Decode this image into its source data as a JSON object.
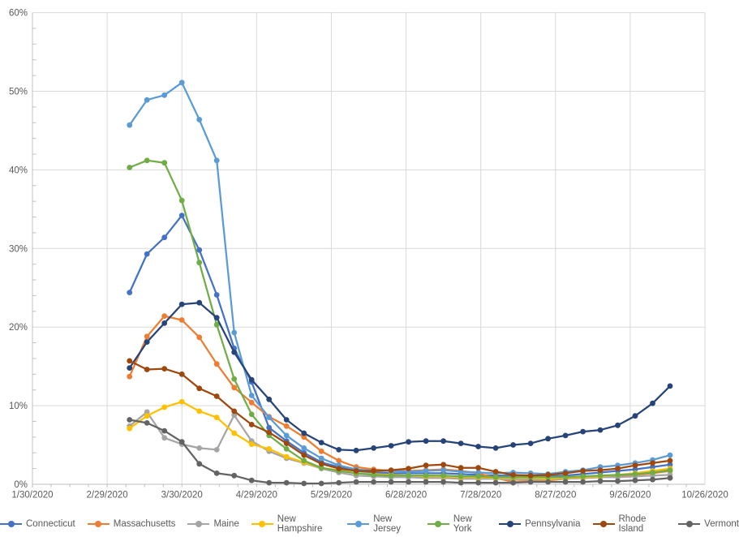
{
  "colors": {
    "background": "#FFFFFF",
    "axis_line": "#BFBFBF",
    "gridline": "#D9D9D9",
    "tick_text": "#595959",
    "legend_text": "#595959"
  },
  "chart_data": {
    "type": "line",
    "title": "",
    "grid": true,
    "legend_position": "bottom",
    "x_axis": {
      "tick_labels": [
        "1/30/2020",
        "2/29/2020",
        "3/30/2020",
        "4/29/2020",
        "5/29/2020",
        "6/28/2020",
        "7/28/2020",
        "8/27/2020",
        "9/26/2020",
        "10/26/2020"
      ],
      "tick_day_offsets": [
        0,
        30,
        60,
        90,
        120,
        150,
        180,
        210,
        240,
        270
      ],
      "range_days": [
        0,
        270
      ]
    },
    "y_axis": {
      "tick_labels": [
        "0%",
        "10%",
        "20%",
        "30%",
        "40%",
        "50%",
        "60%"
      ],
      "min": 0,
      "max": 60,
      "major_step": 10,
      "minor_step": 2,
      "unit": "%"
    },
    "point_dates": [
      "3/9/2020",
      "3/16/2020",
      "3/23/2020",
      "3/30/2020",
      "4/6/2020",
      "4/13/2020",
      "4/20/2020",
      "4/27/2020",
      "5/4/2020",
      "5/11/2020",
      "5/18/2020",
      "5/25/2020",
      "6/1/2020",
      "6/8/2020",
      "6/15/2020",
      "6/22/2020",
      "6/29/2020",
      "7/6/2020",
      "7/13/2020",
      "7/20/2020",
      "7/27/2020",
      "8/3/2020",
      "8/10/2020",
      "8/17/2020",
      "8/24/2020",
      "8/31/2020",
      "9/7/2020",
      "9/14/2020",
      "9/21/2020",
      "9/28/2020",
      "10/5/2020",
      "10/12/2020"
    ],
    "point_day_offsets": [
      39,
      46,
      53,
      60,
      67,
      74,
      81,
      88,
      95,
      102,
      109,
      116,
      123,
      130,
      137,
      144,
      151,
      158,
      165,
      172,
      179,
      186,
      193,
      200,
      207,
      214,
      221,
      228,
      235,
      242,
      249,
      256
    ],
    "series": [
      {
        "name": "Connecticut",
        "color": "#4472C4",
        "values": [
          24.4,
          29.3,
          31.4,
          34.2,
          29.8,
          24.1,
          17.3,
          13.0,
          7.2,
          5.5,
          4.0,
          2.8,
          2.2,
          1.7,
          1.5,
          1.4,
          1.4,
          1.4,
          1.4,
          1.3,
          1.2,
          1.1,
          1.1,
          1.1,
          1.0,
          1.1,
          1.3,
          1.5,
          1.7,
          1.9,
          2.2,
          2.5
        ]
      },
      {
        "name": "Massachusetts",
        "color": "#ED7D31",
        "values": [
          13.7,
          18.8,
          21.4,
          20.9,
          18.7,
          15.3,
          12.3,
          10.4,
          8.6,
          7.4,
          6.0,
          4.2,
          3.0,
          2.2,
          1.9,
          1.7,
          1.7,
          1.8,
          1.9,
          1.7,
          1.4,
          0.8,
          0.3,
          0.4,
          0.5,
          0.7,
          0.8,
          0.9,
          1.1,
          1.2,
          1.4,
          1.7
        ]
      },
      {
        "name": "Maine",
        "color": "#A5A5A5",
        "values": [
          7.4,
          9.2,
          5.9,
          5.1,
          4.6,
          4.4,
          8.8,
          5.5,
          4.2,
          3.3,
          2.7,
          2.0,
          1.5,
          1.1,
          1.0,
          0.9,
          0.9,
          0.8,
          0.8,
          0.7,
          0.7,
          0.7,
          0.6,
          0.6,
          0.6,
          0.7,
          0.8,
          0.9,
          0.9,
          1.0,
          1.1,
          1.2
        ]
      },
      {
        "name": "New Hampshire",
        "color": "#FFC000",
        "values": [
          7.1,
          8.7,
          9.8,
          10.5,
          9.3,
          8.5,
          6.5,
          5.1,
          4.5,
          3.5,
          2.8,
          2.1,
          1.8,
          1.4,
          1.3,
          1.2,
          1.1,
          1.0,
          1.0,
          0.9,
          0.9,
          0.8,
          0.8,
          0.8,
          0.7,
          0.8,
          0.9,
          1.0,
          1.2,
          1.4,
          1.7,
          2.0
        ]
      },
      {
        "name": "New Jersey",
        "color": "#5B9BD5",
        "values": [
          45.7,
          48.9,
          49.5,
          51.1,
          46.4,
          41.2,
          19.3,
          11.3,
          8.5,
          6.2,
          4.6,
          3.3,
          2.4,
          1.9,
          1.7,
          1.7,
          1.6,
          1.7,
          1.8,
          1.6,
          1.5,
          1.4,
          1.5,
          1.4,
          1.3,
          1.6,
          1.8,
          2.2,
          2.4,
          2.7,
          3.1,
          3.7
        ]
      },
      {
        "name": "New York",
        "color": "#70AD47",
        "values": [
          40.3,
          41.2,
          40.9,
          36.1,
          28.2,
          20.3,
          13.4,
          8.9,
          6.2,
          4.5,
          3.0,
          2.1,
          1.7,
          1.4,
          1.2,
          1.1,
          1.1,
          1.1,
          1.1,
          1.0,
          1.0,
          0.9,
          0.9,
          0.9,
          0.9,
          0.9,
          1.0,
          1.1,
          1.2,
          1.3,
          1.5,
          1.8
        ]
      },
      {
        "name": "Pennsylvania",
        "color": "#264478",
        "values": [
          14.8,
          18.1,
          20.5,
          22.9,
          23.1,
          21.2,
          16.8,
          13.3,
          10.8,
          8.2,
          6.5,
          5.3,
          4.4,
          4.3,
          4.6,
          4.9,
          5.4,
          5.5,
          5.5,
          5.2,
          4.8,
          4.6,
          5.0,
          5.2,
          5.8,
          6.2,
          6.7,
          6.9,
          7.5,
          8.7,
          10.3,
          12.5
        ]
      },
      {
        "name": "Rhode Island",
        "color": "#9E480E",
        "values": [
          15.7,
          14.6,
          14.7,
          14.0,
          12.2,
          11.2,
          9.3,
          7.6,
          6.6,
          5.2,
          3.7,
          2.6,
          2.0,
          1.7,
          1.7,
          1.8,
          2.0,
          2.4,
          2.5,
          2.1,
          2.1,
          1.6,
          1.2,
          1.1,
          1.2,
          1.4,
          1.7,
          1.8,
          2.0,
          2.4,
          2.7,
          3.0
        ]
      },
      {
        "name": "Vermont",
        "color": "#636363",
        "values": [
          8.2,
          7.8,
          6.8,
          5.4,
          2.6,
          1.4,
          1.1,
          0.5,
          0.2,
          0.2,
          0.1,
          0.1,
          0.2,
          0.3,
          0.3,
          0.3,
          0.3,
          0.3,
          0.3,
          0.2,
          0.2,
          0.2,
          0.2,
          0.3,
          0.3,
          0.3,
          0.3,
          0.4,
          0.4,
          0.5,
          0.6,
          0.8
        ]
      }
    ]
  }
}
